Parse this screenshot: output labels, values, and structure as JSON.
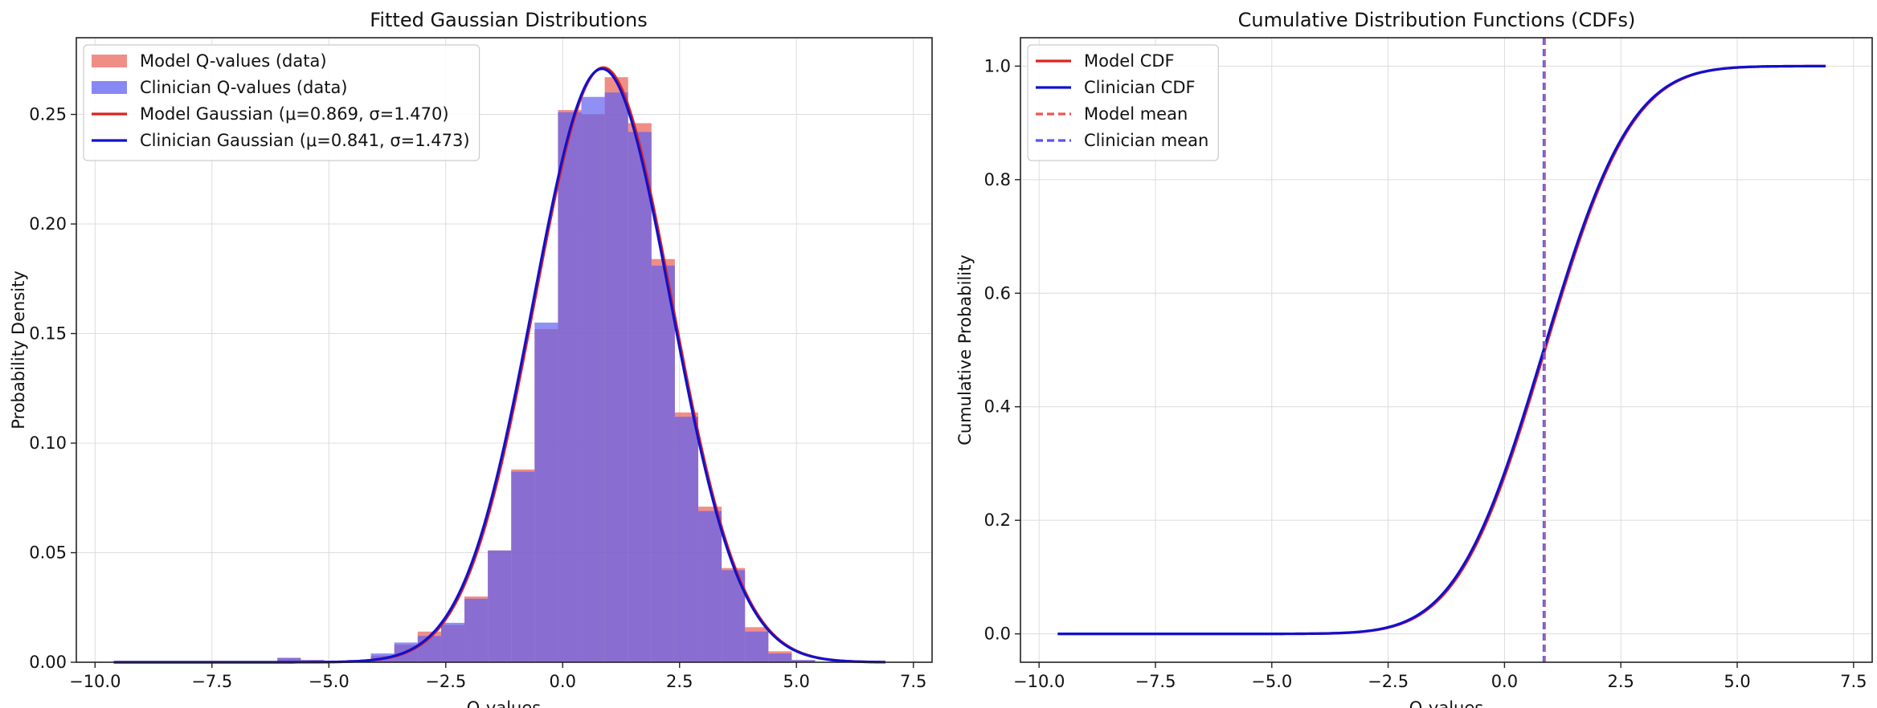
{
  "chart_data": [
    {
      "type": "histogram",
      "title": "Fitted Gaussian Distributions",
      "xlabel": "Q-values",
      "ylabel": "Probability Density",
      "xlim": [
        -10.4,
        7.9
      ],
      "ylim": [
        0,
        0.285
      ],
      "xticks": [
        -10.0,
        -7.5,
        -5.0,
        -2.5,
        0.0,
        2.5,
        5.0,
        7.5
      ],
      "xtick_labels": [
        "−10.0",
        "−7.5",
        "−5.0",
        "−2.5",
        "0.0",
        "2.5",
        "5.0",
        "7.5"
      ],
      "yticks": [
        0.0,
        0.05,
        0.1,
        0.15,
        0.2,
        0.25
      ],
      "ytick_labels": [
        "0.00",
        "0.05",
        "0.10",
        "0.15",
        "0.20",
        "0.25"
      ],
      "grid": true,
      "legend_position": "top-left",
      "bin_edges": [
        -9.6,
        -9.1,
        -8.6,
        -8.1,
        -7.6,
        -7.1,
        -6.6,
        -6.1,
        -5.6,
        -5.1,
        -4.6,
        -4.1,
        -3.6,
        -3.1,
        -2.6,
        -2.1,
        -1.6,
        -1.1,
        -0.6,
        -0.1,
        0.4,
        0.9,
        1.4,
        1.9,
        2.4,
        2.9,
        3.4,
        3.9,
        4.4,
        4.9,
        5.4
      ],
      "histograms": [
        {
          "name": "Model Q-values (data)",
          "color": "#e8685f",
          "values": [
            0,
            0,
            0,
            0,
            0,
            0,
            0,
            0.002,
            0.001,
            0,
            0.001,
            0.003,
            0.008,
            0.014,
            0.017,
            0.03,
            0.051,
            0.088,
            0.152,
            0.252,
            0.25,
            0.267,
            0.246,
            0.184,
            0.114,
            0.071,
            0.043,
            0.016,
            0.005,
            0.001
          ]
        },
        {
          "name": "Clinician Q-values (data)",
          "color": "#6060f0",
          "values": [
            0,
            0,
            0,
            0,
            0,
            0,
            0,
            0.002,
            0.001,
            0,
            0.001,
            0.004,
            0.009,
            0.012,
            0.018,
            0.029,
            0.051,
            0.087,
            0.155,
            0.251,
            0.258,
            0.26,
            0.242,
            0.181,
            0.112,
            0.069,
            0.042,
            0.014,
            0.004,
            0.001
          ]
        }
      ],
      "series": [
        {
          "name": "Model Gaussian (μ=0.869, σ=1.470)",
          "color": "#dd2222",
          "mu": 0.869,
          "sigma": 1.47,
          "x_range": [
            -9.6,
            6.9
          ]
        },
        {
          "name": "Clinician Gaussian (μ=0.841, σ=1.473)",
          "color": "#1111cc",
          "mu": 0.841,
          "sigma": 1.473,
          "x_range": [
            -9.6,
            6.9
          ]
        }
      ]
    },
    {
      "type": "line",
      "title": "Cumulative Distribution Functions (CDFs)",
      "xlabel": "Q-values",
      "ylabel": "Cumulative Probability",
      "xlim": [
        -10.4,
        7.9
      ],
      "ylim": [
        -0.05,
        1.05
      ],
      "xticks": [
        -10.0,
        -7.5,
        -5.0,
        -2.5,
        0.0,
        2.5,
        5.0,
        7.5
      ],
      "xtick_labels": [
        "−10.0",
        "−7.5",
        "−5.0",
        "−2.5",
        "0.0",
        "2.5",
        "5.0",
        "7.5"
      ],
      "yticks": [
        0.0,
        0.2,
        0.4,
        0.6,
        0.8,
        1.0
      ],
      "ytick_labels": [
        "0.0",
        "0.2",
        "0.4",
        "0.6",
        "0.8",
        "1.0"
      ],
      "grid": true,
      "legend_position": "top-left",
      "series": [
        {
          "name": "Model CDF",
          "color": "#dd2222",
          "mu": 0.869,
          "sigma": 1.47,
          "x_range": [
            -9.6,
            6.9
          ]
        },
        {
          "name": "Clinician CDF",
          "color": "#1111cc",
          "mu": 0.841,
          "sigma": 1.473,
          "x_range": [
            -9.6,
            6.9
          ]
        }
      ],
      "vlines": [
        {
          "name": "Model mean",
          "color": "#ee5555",
          "x": 0.869
        },
        {
          "name": "Clinician mean",
          "color": "#5555ee",
          "x": 0.841
        }
      ]
    }
  ]
}
